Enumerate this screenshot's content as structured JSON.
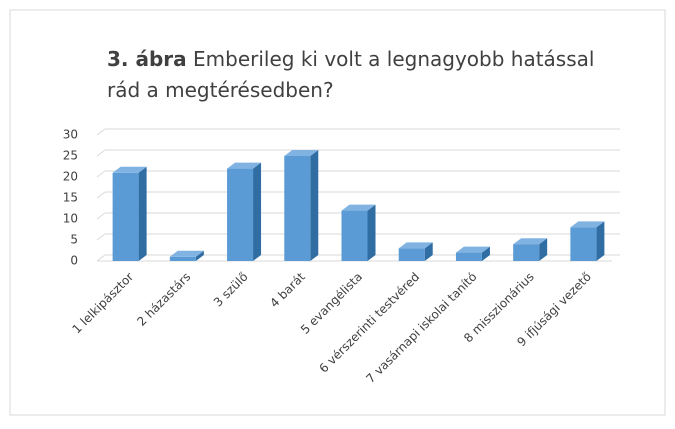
{
  "chart_data": {
    "type": "bar3d",
    "title_bold": "3. ábra",
    "title": "Emberileg ki volt a legnagyobb hatással rád a megtérésedben?",
    "categories": [
      "1 lelkipásztor",
      "2 házastárs",
      "3 szülő",
      "4 barát",
      "5 evangélista",
      "6 vérszerinti testvéred",
      "7 vasárnapi iskolai tanító",
      "8 misszionárius",
      "9 ifjúsági vezető"
    ],
    "values": [
      21,
      1,
      22,
      25,
      12,
      3,
      2,
      4,
      8
    ],
    "color": "#5b9bd5",
    "ylim": [
      0,
      30
    ],
    "yticks": [
      0,
      5,
      10,
      15,
      20,
      25,
      30
    ],
    "grid": true
  }
}
